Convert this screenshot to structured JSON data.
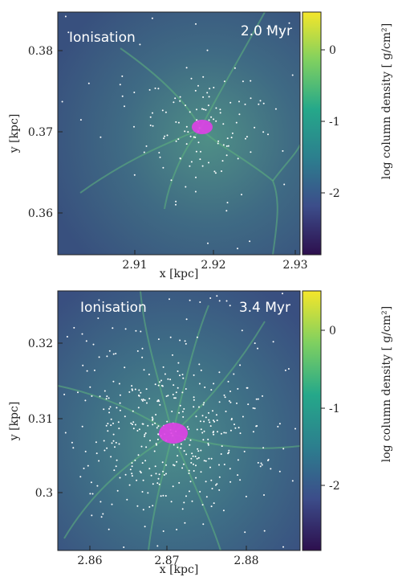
{
  "chart_data": [
    {
      "type": "heatmap",
      "panel_label": "Ionisation",
      "time_label": "2.0 Myr",
      "xlabel": "x [kpc]",
      "ylabel": "y [kpc]",
      "x_ticks": [
        "2.91",
        "2.92",
        "2.93"
      ],
      "y_ticks": [
        "0.38",
        "0.37",
        "0.36"
      ],
      "colorbar_label": "log column density [ g/cm²]",
      "colorbar_ticks": [
        "0",
        "-1",
        "-2"
      ],
      "colormap": [
        "#2d0f4e",
        "#3c4d8a",
        "#2c7f8e",
        "#25a88a",
        "#7fd060",
        "#f5e62a"
      ]
    },
    {
      "type": "heatmap",
      "panel_label": "Ionisation",
      "time_label": "3.4 Myr",
      "xlabel": "x [kpc]",
      "ylabel": "y [kpc]",
      "x_ticks": [
        "2.86",
        "2.87",
        "2.88"
      ],
      "y_ticks": [
        "0.32",
        "0.31",
        "0.3"
      ],
      "colorbar_label": "log column density [ g/cm²]",
      "colorbar_ticks": [
        "0",
        "-1",
        "-2"
      ],
      "colormap": [
        "#2d0f4e",
        "#3c4d8a",
        "#2c7f8e",
        "#25a88a",
        "#7fd060",
        "#f5e62a"
      ]
    }
  ]
}
